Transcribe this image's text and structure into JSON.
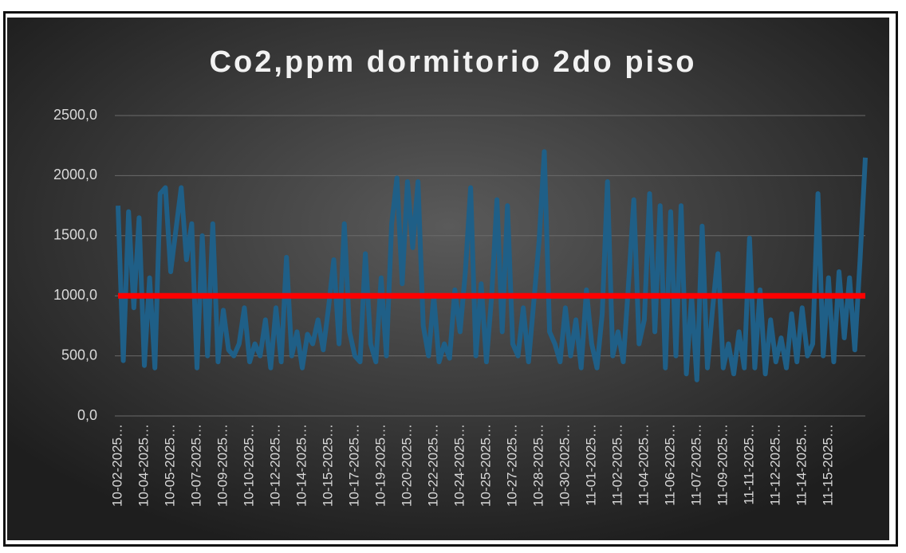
{
  "chart_data": {
    "type": "line",
    "title": "Co2,ppm dormitorio 2do piso",
    "categories": [
      "10-02-2025…",
      null,
      null,
      null,
      null,
      "10-04-2025…",
      null,
      null,
      null,
      null,
      "10-05-2025…",
      null,
      null,
      null,
      null,
      "10-07-2025…",
      null,
      null,
      null,
      null,
      "10-09-2025…",
      null,
      null,
      null,
      null,
      "10-10-2025…",
      null,
      null,
      null,
      null,
      "10-12-2025…",
      null,
      null,
      null,
      null,
      "10-14-2025…",
      null,
      null,
      null,
      null,
      "10-15-2025…",
      null,
      null,
      null,
      null,
      "10-17-2025…",
      null,
      null,
      null,
      null,
      "10-19-2025…",
      null,
      null,
      null,
      null,
      "10-20-2025…",
      null,
      null,
      null,
      null,
      "10-22-2025…",
      null,
      null,
      null,
      null,
      "10-24-2025…",
      null,
      null,
      null,
      null,
      "10-25-2025…",
      null,
      null,
      null,
      null,
      "10-27-2025…",
      null,
      null,
      null,
      null,
      "10-28-2025…",
      null,
      null,
      null,
      null,
      "10-30-2025…",
      null,
      null,
      null,
      null,
      "11-01-2025…",
      null,
      null,
      null,
      null,
      "11-02-2025…",
      null,
      null,
      null,
      null,
      "11-04-2025…",
      null,
      null,
      null,
      null,
      "11-06-2025…",
      null,
      null,
      null,
      null,
      "11-07-2025…",
      null,
      null,
      null,
      null,
      "11-09-2025…",
      null,
      null,
      null,
      null,
      "11-11-2025…",
      null,
      null,
      null,
      null,
      "11-12-2025…",
      null,
      null,
      null,
      null,
      "11-14-2025…",
      null,
      null,
      null,
      null,
      "11-15-2025…",
      null,
      null,
      null,
      null,
      null,
      null,
      null
    ],
    "series": [
      {
        "color": "#1f5f87",
        "values": [
          1750,
          460,
          1700,
          900,
          1650,
          420,
          1150,
          400,
          1850,
          1900,
          1200,
          1550,
          1900,
          1300,
          1600,
          400,
          1500,
          500,
          1600,
          450,
          880,
          550,
          500,
          600,
          900,
          450,
          600,
          500,
          800,
          400,
          900,
          450,
          1320,
          500,
          700,
          400,
          680,
          600,
          800,
          550,
          900,
          1300,
          600,
          1600,
          700,
          500,
          450,
          1350,
          600,
          450,
          1150,
          500,
          1600,
          1980,
          1100,
          1950,
          1400,
          1950,
          750,
          500,
          1000,
          450,
          600,
          480,
          1050,
          700,
          1200,
          1900,
          500,
          1100,
          450,
          1000,
          1800,
          700,
          1750,
          600,
          500,
          900,
          450,
          950,
          1450,
          2200,
          700,
          600,
          450,
          900,
          500,
          800,
          400,
          1050,
          600,
          400,
          850,
          1950,
          500,
          700,
          450,
          1100,
          1800,
          600,
          800,
          1850,
          700,
          1750,
          400,
          1700,
          500,
          1750,
          350,
          1000,
          300,
          1580,
          400,
          900,
          1350,
          400,
          600,
          350,
          700,
          400,
          1480,
          400,
          1050,
          350,
          800,
          450,
          650,
          400,
          850,
          450,
          900,
          500,
          600,
          1850,
          500,
          1150,
          450,
          1200,
          650,
          1150,
          550,
          1300,
          2150
        ]
      }
    ],
    "threshold": {
      "value": 1000,
      "color": "#ff0000"
    },
    "ylim": [
      0,
      2500
    ],
    "yticks": [
      {
        "value": 0,
        "label": "0,0"
      },
      {
        "value": 500,
        "label": "500,0"
      },
      {
        "value": 1000,
        "label": "1000,0"
      },
      {
        "value": 1500,
        "label": "1500,0"
      },
      {
        "value": 2000,
        "label": "2000,0"
      },
      {
        "value": 2500,
        "label": "2500,0"
      }
    ],
    "grid": true
  }
}
